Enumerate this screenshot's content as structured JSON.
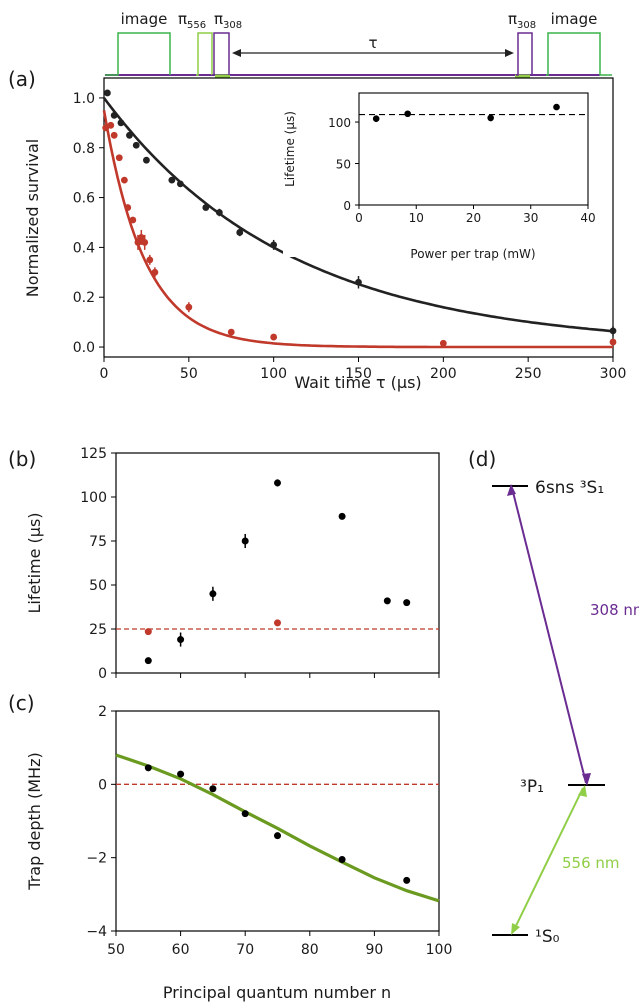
{
  "figure": {
    "panel_a_letter": "(a)",
    "panel_b_letter": "(b)",
    "panel_c_letter": "(c)",
    "panel_d_letter": "(d)"
  },
  "pulse_sequence": {
    "image_label": "image",
    "pi556_label": "π",
    "pi556_sub": "556",
    "pi308_label": "π",
    "pi308_sub": "308",
    "tau_label": "τ",
    "colors": {
      "image": "#3cb44b",
      "pi556": "#8fce46",
      "pi308": "#6a2c91",
      "baseline_purple": "#6a2c91",
      "baseline_green": "#3cb44b"
    }
  },
  "level_diagram": {
    "levels": [
      {
        "id": "6sns",
        "label": "6sns ³S₁"
      },
      {
        "id": "3P1",
        "label": "³P₁"
      },
      {
        "id": "1S0",
        "label": "¹S₀"
      }
    ],
    "transitions": [
      {
        "label": "308 nm",
        "color": "#6a2c91"
      },
      {
        "label": "556 nm",
        "color": "#8fce46"
      }
    ]
  },
  "chart_data": [
    {
      "id": "panel-a",
      "type": "scatter",
      "xlabel": "Wait time τ (μs)",
      "ylabel": "Normalized survival",
      "xlim": [
        0,
        300
      ],
      "ylim": [
        -0.04,
        1.08
      ],
      "xticks": [
        0,
        50,
        100,
        150,
        200,
        250,
        300
      ],
      "yticks": [
        0.0,
        0.2,
        0.4,
        0.6,
        0.8,
        1.0
      ],
      "grid": false,
      "series": [
        {
          "color": "#222222",
          "x": [
            2,
            6,
            10,
            15,
            19,
            25,
            40,
            45,
            60,
            68,
            80,
            100,
            150,
            300
          ],
          "y": [
            1.02,
            0.93,
            0.9,
            0.85,
            0.81,
            0.75,
            0.67,
            0.655,
            0.56,
            0.54,
            0.46,
            0.41,
            0.26,
            0.065
          ],
          "yerr": [
            0.01,
            0.01,
            0.012,
            0.012,
            0.012,
            0.012,
            0.01,
            0.01,
            0.012,
            0.015,
            0.015,
            0.02,
            0.025,
            0.02
          ],
          "fit": {
            "amplitude": 1.0,
            "lifetime": 109
          }
        },
        {
          "color": "#c0392b",
          "x": [
            1,
            4,
            6,
            9,
            12,
            14,
            17,
            20,
            22,
            24,
            27,
            30,
            50,
            75,
            100,
            200,
            300
          ],
          "y": [
            0.88,
            0.89,
            0.85,
            0.76,
            0.67,
            0.56,
            0.51,
            0.42,
            0.44,
            0.42,
            0.35,
            0.3,
            0.16,
            0.06,
            0.04,
            0.015,
            0.02
          ],
          "yerr": [
            0.01,
            0.01,
            0.012,
            0.012,
            0.012,
            0.012,
            0.012,
            0.03,
            0.03,
            0.03,
            0.02,
            0.02,
            0.02,
            0.01,
            0.01,
            0.005,
            0.005
          ],
          "fit": {
            "amplitude": 0.95,
            "lifetime": 24
          }
        }
      ],
      "inset": {
        "xlabel": "Power per trap (mW)",
        "ylabel": "Lifetime (μs)",
        "xlim": [
          0,
          40
        ],
        "ylim": [
          0,
          135
        ],
        "xticks": [
          0,
          10,
          20,
          30,
          40
        ],
        "yticks": [
          0,
          50,
          100
        ],
        "points": {
          "x": [
            3,
            8.5,
            23,
            34.5
          ],
          "y": [
            104,
            110,
            105,
            118
          ],
          "yerr": [
            4,
            2,
            4,
            3
          ]
        },
        "dashed_line_y": 109
      }
    },
    {
      "id": "panel-b",
      "type": "scatter",
      "xlabel": "",
      "ylabel": "Lifetime (μs)",
      "xlim": [
        50,
        100
      ],
      "ylim": [
        0,
        125
      ],
      "xticks": [
        50,
        60,
        70,
        80,
        90,
        100
      ],
      "yticks": [
        0,
        25,
        50,
        75,
        100,
        125
      ],
      "grid": false,
      "series": [
        {
          "color": "#000000",
          "x": [
            55,
            60,
            65,
            70,
            75,
            85,
            92,
            95
          ],
          "y": [
            7,
            19,
            45,
            75,
            108,
            89,
            41,
            40
          ],
          "yerr": [
            1,
            4,
            4,
            4,
            2,
            1,
            1,
            1
          ]
        },
        {
          "color": "#c0392b",
          "x": [
            55,
            75
          ],
          "y": [
            23.5,
            28.5
          ],
          "yerr": [
            1,
            1
          ]
        }
      ],
      "dashed_line_y": 25
    },
    {
      "id": "panel-c",
      "type": "scatter",
      "xlabel": "Principal quantum number n",
      "ylabel": "Trap depth (MHz)",
      "xlim": [
        50,
        100
      ],
      "ylim": [
        -4,
        2
      ],
      "xticks": [
        50,
        60,
        70,
        80,
        90,
        100
      ],
      "yticks": [
        -4,
        -2,
        0,
        2
      ],
      "grid": false,
      "series": [
        {
          "color": "#000000",
          "x": [
            55,
            60,
            65,
            70,
            75,
            85,
            95
          ],
          "y": [
            0.45,
            0.28,
            -0.12,
            -0.8,
            -1.4,
            -2.05,
            -2.62
          ]
        }
      ],
      "fit_curve": {
        "color": "#6a9a1f",
        "x": [
          50,
          55,
          60,
          65,
          70,
          75,
          80,
          85,
          90,
          95,
          100
        ],
        "y": [
          0.8,
          0.5,
          0.15,
          -0.28,
          -0.75,
          -1.2,
          -1.68,
          -2.12,
          -2.55,
          -2.9,
          -3.18
        ]
      },
      "dashed_line_y": 0
    }
  ]
}
